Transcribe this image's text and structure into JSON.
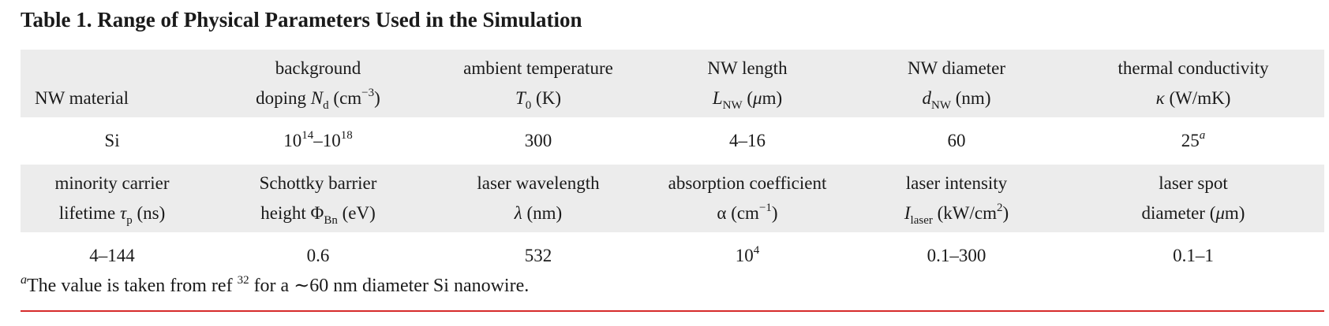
{
  "title": "Table 1.  Range of Physical Parameters Used in the Simulation",
  "row1": {
    "headers": [
      {
        "line1": "",
        "line2": "NW material"
      },
      {
        "line1": "background",
        "line2a": "doping ",
        "sym": "N",
        "sub": "d",
        "line2b": " (cm",
        "sup": "−3",
        "line2c": ")"
      },
      {
        "line1": "ambient temperature",
        "sym": "T",
        "sub": "0",
        "line2b": " (K)"
      },
      {
        "line1": "NW length",
        "sym": "L",
        "sub": "NW",
        "line2b": " (",
        "mu": "μ",
        "line2c": "m)"
      },
      {
        "line1": "NW diameter",
        "sym": "d",
        "sub": "NW",
        "line2b": " (nm)"
      },
      {
        "line1": "thermal conductivity",
        "sym": "κ",
        "line2b": " (W/mK)"
      }
    ],
    "values": [
      {
        "text": "Si"
      },
      {
        "a": "10",
        "sa": "14",
        "dash": "–",
        "b": "10",
        "sb": "18"
      },
      {
        "text": "300"
      },
      {
        "text": "4–16"
      },
      {
        "text": "60"
      },
      {
        "text": "25",
        "note": "a"
      }
    ]
  },
  "row2": {
    "headers": [
      {
        "line1": "minority carrier",
        "line2a": "lifetime ",
        "sym": "τ",
        "sub": "p",
        "line2b": " (ns)"
      },
      {
        "line1": "Schottky barrier",
        "line2a": "height Φ",
        "sub": "Bn",
        "line2b": " (eV)"
      },
      {
        "line1": "laser wavelength",
        "sym": "λ",
        "line2b": " (nm)"
      },
      {
        "line1": "absorption coefficient",
        "line2a": "α (cm",
        "sup": "−1",
        "line2b": ")"
      },
      {
        "line1": "laser intensity",
        "sym": "I",
        "sub": "laser",
        "line2b": " (kW/cm",
        "sup": "2",
        "line2c": ")"
      },
      {
        "line1": "laser spot",
        "line2a": "diameter (",
        "mu": "μ",
        "line2b": "m)"
      }
    ],
    "values": [
      {
        "text": "4–144"
      },
      {
        "text": "0.6"
      },
      {
        "text": "532"
      },
      {
        "a": "10",
        "sa": "4"
      },
      {
        "text": "0.1–300"
      },
      {
        "text": "0.1–1"
      }
    ]
  },
  "footnote": {
    "mark": "a",
    "text1": "The value is taken from ref ",
    "ref": "32",
    "text2": " for a ∼60 nm diameter Si nanowire."
  },
  "colors": {
    "header_bg": "#ececec",
    "rule": "#d62b2b"
  }
}
